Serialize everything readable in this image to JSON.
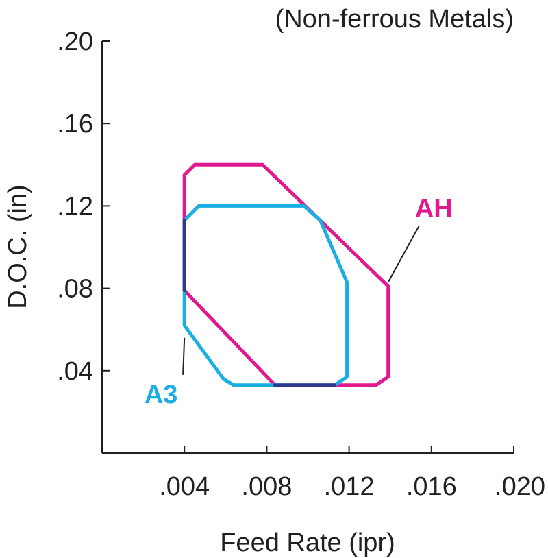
{
  "chart_data": {
    "type": "area",
    "title": "(Non-ferrous Metals)",
    "xlabel": "Feed Rate (ipr)",
    "ylabel": "D.O.C. (in)",
    "xlim": [
      0,
      0.02
    ],
    "ylim": [
      0,
      0.2
    ],
    "x_ticks": [
      {
        "value": 0.004,
        "label": ".004"
      },
      {
        "value": 0.008,
        "label": ".008"
      },
      {
        "value": 0.012,
        "label": ".012"
      },
      {
        "value": 0.016,
        "label": ".016"
      },
      {
        "value": 0.02,
        "label": ".020"
      }
    ],
    "y_ticks": [
      {
        "value": 0.04,
        "label": ".04"
      },
      {
        "value": 0.08,
        "label": ".08"
      },
      {
        "value": 0.12,
        "label": ".12"
      },
      {
        "value": 0.16,
        "label": ".16"
      },
      {
        "value": 0.2,
        "label": ".20"
      }
    ],
    "grid": false,
    "series": [
      {
        "name": "AH",
        "color": "#e0198f",
        "points": [
          {
            "x": 0.004,
            "y": 0.135
          },
          {
            "x": 0.0045,
            "y": 0.14
          },
          {
            "x": 0.0078,
            "y": 0.14
          },
          {
            "x": 0.0139,
            "y": 0.081
          },
          {
            "x": 0.0139,
            "y": 0.037
          },
          {
            "x": 0.0133,
            "y": 0.033
          },
          {
            "x": 0.0084,
            "y": 0.033
          },
          {
            "x": 0.004,
            "y": 0.079
          }
        ],
        "label_anchor": {
          "x": 0.0139,
          "y": 0.083
        },
        "label_position": {
          "x": 0.0152,
          "y": 0.113
        }
      },
      {
        "name": "A3",
        "color": "#1aaee3",
        "points": [
          {
            "x": 0.004,
            "y": 0.113
          },
          {
            "x": 0.0047,
            "y": 0.12
          },
          {
            "x": 0.0098,
            "y": 0.12
          },
          {
            "x": 0.0106,
            "y": 0.113
          },
          {
            "x": 0.0119,
            "y": 0.083
          },
          {
            "x": 0.0119,
            "y": 0.037
          },
          {
            "x": 0.0113,
            "y": 0.033
          },
          {
            "x": 0.0064,
            "y": 0.033
          },
          {
            "x": 0.0059,
            "y": 0.036
          },
          {
            "x": 0.004,
            "y": 0.062
          }
        ],
        "label_anchor": {
          "x": 0.004,
          "y": 0.056
        },
        "label_position": {
          "x": 0.003,
          "y": 0.026
        }
      }
    ],
    "overlap_color": "#2b3a8c",
    "labels": {
      "AH": "AH",
      "A3": "A3"
    }
  }
}
